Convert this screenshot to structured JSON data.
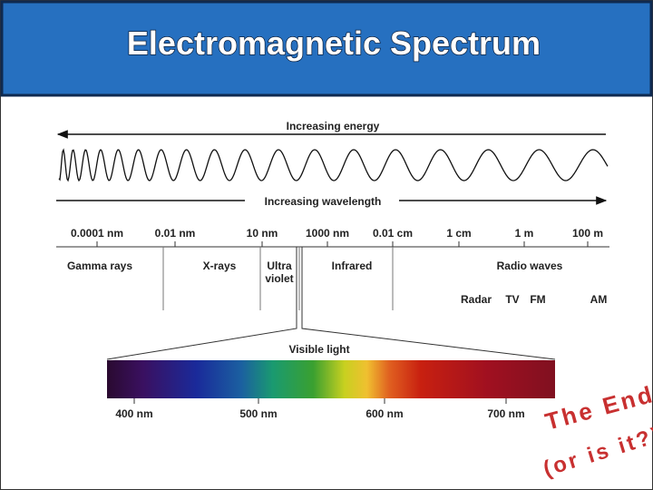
{
  "header": {
    "title": "Electromagnetic Spectrum"
  },
  "arrows": {
    "energy": "Increasing energy",
    "wavelength": "Increasing wavelength"
  },
  "scale": [
    "0.0001 nm",
    "0.01 nm",
    "10 nm",
    "1000 nm",
    "0.01 cm",
    "1 cm",
    "1 m",
    "100 m"
  ],
  "regions": {
    "gamma": "Gamma rays",
    "xray": "X-rays",
    "uv": [
      "Ultra",
      "violet"
    ],
    "infrared": "Infrared",
    "radio": "Radio waves"
  },
  "bands": [
    "Radar",
    "TV",
    "FM",
    "AM"
  ],
  "visible": {
    "label": "Visible light",
    "ticks": [
      "400 nm",
      "500 nm",
      "600 nm",
      "700 nm"
    ]
  },
  "closing": {
    "line1": "The End",
    "line2": "(or is it?)"
  }
}
